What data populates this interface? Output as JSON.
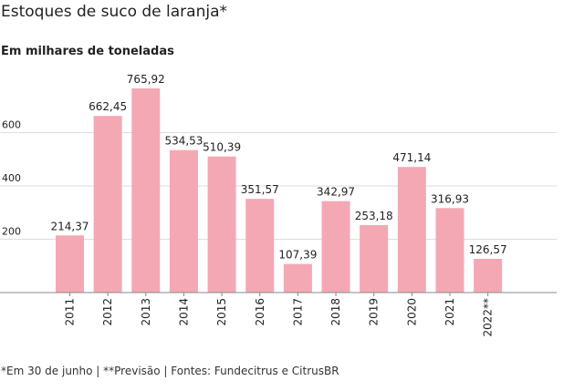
{
  "title": "Estoques de suco de laranja*",
  "subtitle": "Em milhares de toneladas",
  "footnote": "*Em 30 de junho | **Previsão | Fontes: Fundecitrus e CitrusBR",
  "colors": {
    "bar": "#f4a8b4",
    "grid": "#dddddd",
    "axis": "#888888",
    "text": "#222222"
  },
  "chart_data": {
    "type": "bar",
    "categories": [
      "2011",
      "2012",
      "2013",
      "2014",
      "2015",
      "2016",
      "2017",
      "2018",
      "2019",
      "2020",
      "2021",
      "2022**"
    ],
    "values": [
      214.37,
      662.45,
      765.92,
      534.53,
      510.39,
      351.57,
      107.39,
      342.97,
      253.18,
      471.14,
      316.93,
      126.57
    ],
    "value_labels": [
      "214,37",
      "662,45",
      "765,92",
      "534,53",
      "510,39",
      "351,57",
      "107,39",
      "342,97",
      "253,18",
      "471,14",
      "316,93",
      "126,57"
    ],
    "title": "Estoques de suco de laranja*",
    "ylabel": "Em milhares de toneladas",
    "xlabel": "",
    "ylim": [
      0,
      800
    ],
    "yticks": [
      200,
      400,
      600
    ],
    "ytick_labels": [
      "200",
      "400",
      "600"
    ],
    "grid": true
  }
}
